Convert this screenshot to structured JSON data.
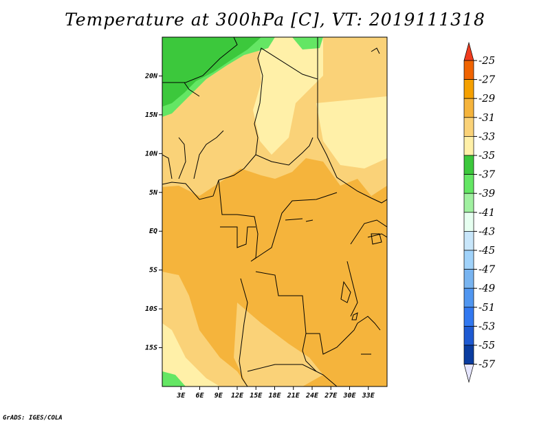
{
  "title": "Temperature at 300hPa [C], VT: 2019111318",
  "credit": "GrADS: IGES/COLA",
  "map": {
    "lon_range": [
      0,
      36
    ],
    "lat_range": [
      -20,
      25
    ],
    "lat_ticks": [
      {
        "value": 20,
        "label": "20N"
      },
      {
        "value": 15,
        "label": "15N"
      },
      {
        "value": 10,
        "label": "10N"
      },
      {
        "value": 5,
        "label": "5N"
      },
      {
        "value": 0,
        "label": "EQ"
      },
      {
        "value": -5,
        "label": "5S"
      },
      {
        "value": -10,
        "label": "10S"
      },
      {
        "value": -15,
        "label": "15S"
      }
    ],
    "lon_ticks": [
      {
        "value": 3,
        "label": "3E"
      },
      {
        "value": 6,
        "label": "6E"
      },
      {
        "value": 9,
        "label": "9E"
      },
      {
        "value": 12,
        "label": "12E"
      },
      {
        "value": 15,
        "label": "15E"
      },
      {
        "value": 18,
        "label": "18E"
      },
      {
        "value": 21,
        "label": "21E"
      },
      {
        "value": 24,
        "label": "24E"
      },
      {
        "value": 27,
        "label": "27E"
      },
      {
        "value": 30,
        "label": "30E"
      },
      {
        "value": 33,
        "label": "33E"
      }
    ]
  },
  "colorbar": {
    "labels": [
      "-25",
      "-27",
      "-29",
      "-31",
      "-33",
      "-35",
      "-37",
      "-39",
      "-41",
      "-43",
      "-45",
      "-47",
      "-49",
      "-51",
      "-53",
      "-55",
      "-57"
    ],
    "colors": [
      "#f03c1e",
      "#f06400",
      "#f5a000",
      "#f5b43c",
      "#fad278",
      "#fff0a8",
      "#3cc83c",
      "#64e664",
      "#a0f0a0",
      "#e6fff0",
      "#c8e6fa",
      "#a0d2fa",
      "#78b4f0",
      "#5096f0",
      "#3278f0",
      "#1e5ad2",
      "#0a3ca0",
      "#0a0a78",
      "#e6e6ff"
    ]
  },
  "fields": {
    "orange": "#f5b43c",
    "light_orange": "#fad278",
    "pale_yellow": "#fff0a8",
    "green": "#3cc83c",
    "light_green": "#64e664"
  }
}
